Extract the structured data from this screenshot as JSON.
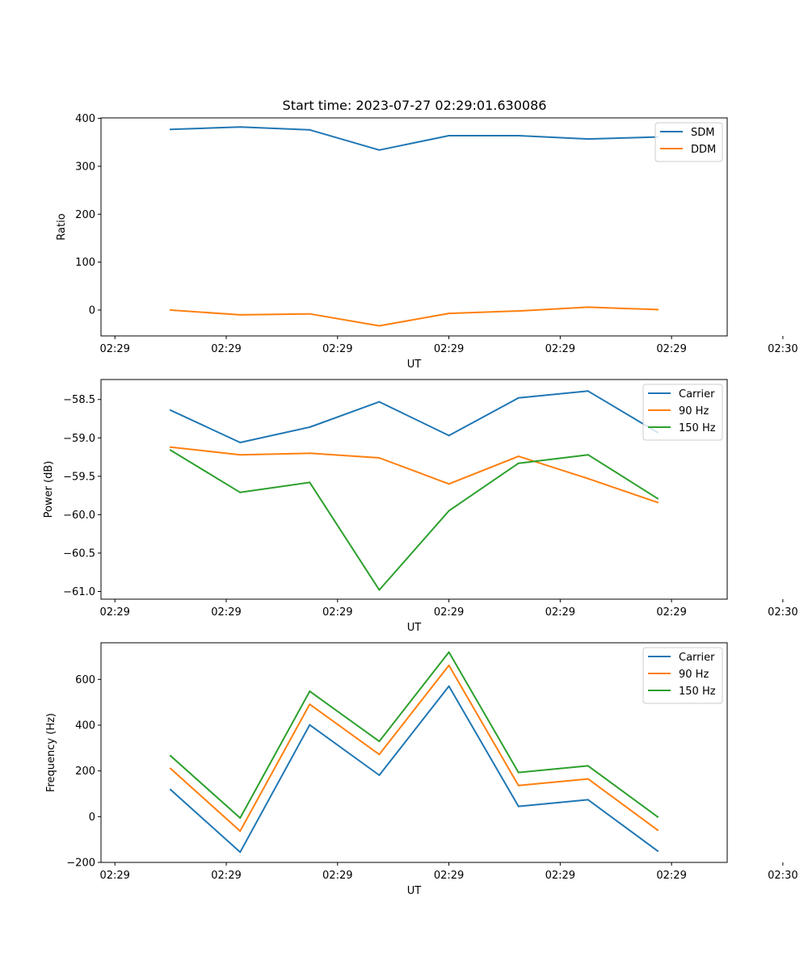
{
  "chart_data": [
    {
      "type": "line",
      "title": "Start time: 2023-07-27 02:29:01.630086",
      "xlabel": "UT",
      "ylabel": "Ratio",
      "x": [
        1,
        2,
        3,
        4,
        5,
        6,
        7,
        8
      ],
      "xlim": [
        0,
        9
      ],
      "xticks": [
        0.2,
        1.8,
        3.4,
        5.0,
        6.6,
        8.2,
        9.8
      ],
      "xtick_labels": [
        "02:29",
        "02:29",
        "02:29",
        "02:29",
        "02:29",
        "02:29",
        "02:30"
      ],
      "ylim": [
        -54,
        401
      ],
      "yticks": [
        0,
        100,
        200,
        300,
        400
      ],
      "ytick_labels": [
        "0",
        "100",
        "200",
        "300",
        "400"
      ],
      "legend": "top-right",
      "series": [
        {
          "name": "SDM",
          "color": "#1f77b4",
          "values": [
            377,
            382,
            376,
            334,
            364,
            364,
            357,
            361
          ]
        },
        {
          "name": "DDM",
          "color": "#ff7f0e",
          "values": [
            0,
            -10,
            -8,
            -33,
            -7,
            -2,
            6,
            1
          ]
        }
      ]
    },
    {
      "type": "line",
      "title": "",
      "xlabel": "UT",
      "ylabel": "Power (dB)",
      "x": [
        1,
        2,
        3,
        4,
        5,
        6,
        7,
        8
      ],
      "xlim": [
        0,
        9
      ],
      "xticks": [
        0.2,
        1.8,
        3.4,
        5.0,
        6.6,
        8.2,
        9.8
      ],
      "xtick_labels": [
        "02:29",
        "02:29",
        "02:29",
        "02:29",
        "02:29",
        "02:29",
        "02:30"
      ],
      "ylim": [
        -61.1,
        -58.24
      ],
      "yticks": [
        -61.0,
        -60.5,
        -60.0,
        -59.5,
        -59.0,
        -58.5
      ],
      "ytick_labels": [
        "−61.0",
        "−60.5",
        "−60.0",
        "−59.5",
        "−59.0",
        "−58.5"
      ],
      "legend": "top-right",
      "series": [
        {
          "name": "Carrier",
          "color": "#1f77b4",
          "values": [
            -58.64,
            -59.06,
            -58.86,
            -58.53,
            -58.97,
            -58.48,
            -58.39,
            -58.93
          ]
        },
        {
          "name": "90 Hz",
          "color": "#ff7f0e",
          "values": [
            -59.12,
            -59.22,
            -59.2,
            -59.26,
            -59.6,
            -59.24,
            -59.53,
            -59.84
          ]
        },
        {
          "name": "150 Hz",
          "color": "#2ca02c",
          "values": [
            -59.16,
            -59.71,
            -59.58,
            -60.98,
            -59.95,
            -59.33,
            -59.22,
            -59.79
          ]
        }
      ]
    },
    {
      "type": "line",
      "title": "",
      "xlabel": "UT",
      "ylabel": "Frequency (Hz)",
      "x": [
        1,
        2,
        3,
        4,
        5,
        6,
        7,
        8
      ],
      "xlim": [
        0,
        9
      ],
      "xticks": [
        0.2,
        1.8,
        3.4,
        5.0,
        6.6,
        8.2,
        9.8
      ],
      "xtick_labels": [
        "02:29",
        "02:29",
        "02:29",
        "02:29",
        "02:29",
        "02:29",
        "02:30"
      ],
      "ylim": [
        -200,
        760
      ],
      "yticks": [
        -200,
        0,
        200,
        400,
        600
      ],
      "ytick_labels": [
        "−200",
        "0",
        "200",
        "400",
        "600"
      ],
      "legend": "top-right",
      "series": [
        {
          "name": "Carrier",
          "color": "#1f77b4",
          "values": [
            118,
            -155,
            401,
            181,
            570,
            45,
            74,
            -150
          ]
        },
        {
          "name": "90 Hz",
          "color": "#ff7f0e",
          "values": [
            210,
            -63,
            491,
            272,
            661,
            136,
            165,
            -59
          ]
        },
        {
          "name": "150 Hz",
          "color": "#2ca02c",
          "values": [
            266,
            -6,
            548,
            329,
            719,
            193,
            222,
            -1
          ]
        }
      ]
    }
  ]
}
